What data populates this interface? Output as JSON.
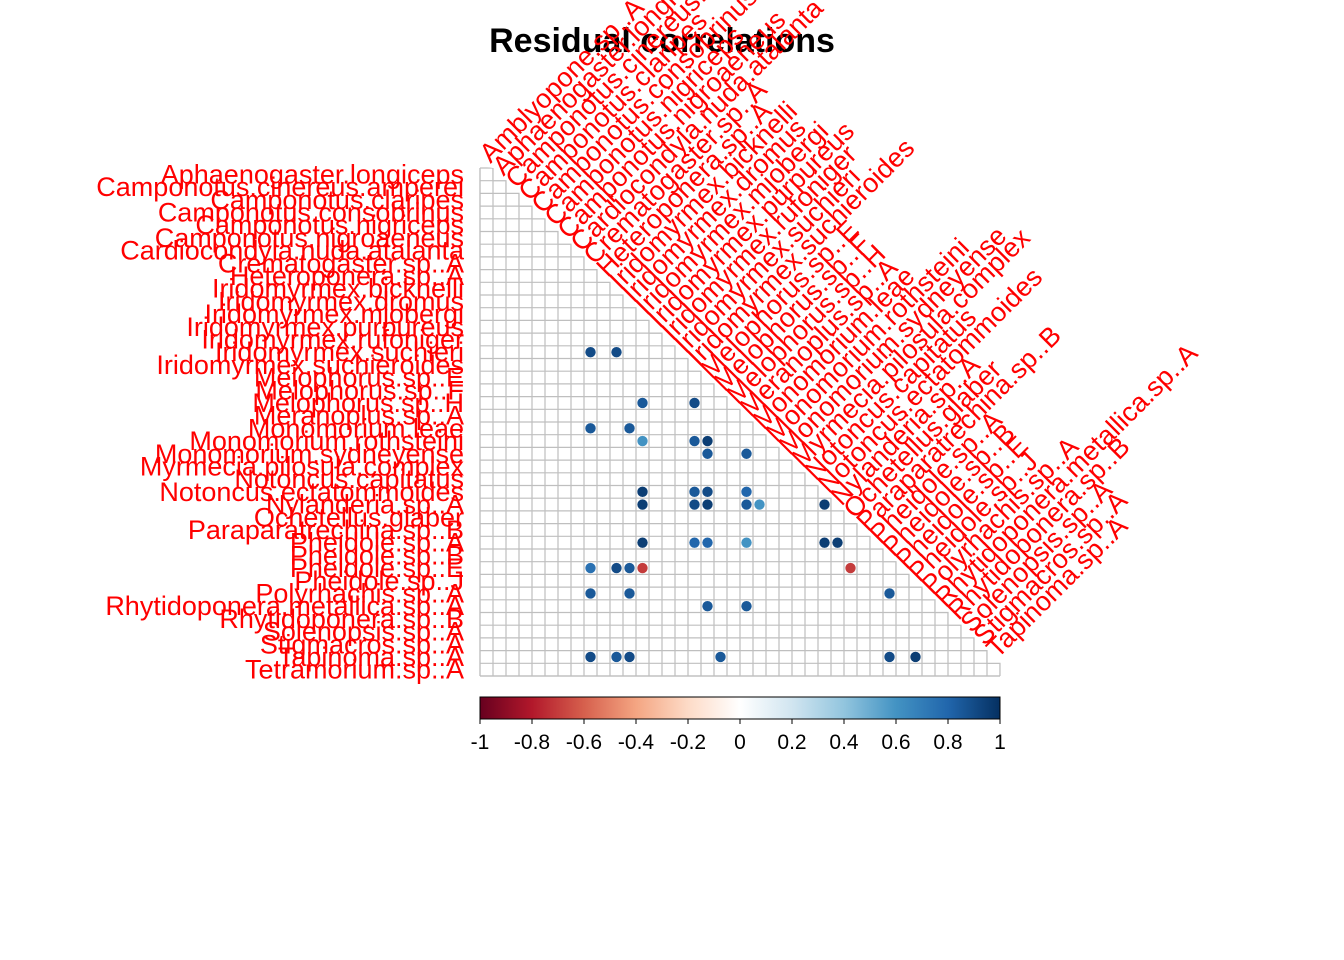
{
  "chart_data": {
    "type": "heatmap",
    "subtype": "correlation-matrix-lower-triangle",
    "title": "Residual correlations",
    "label_color": "#ff0000",
    "grid_color": "#bfbfbf",
    "colorscale": [
      "#67001f",
      "#b2182b",
      "#d6604d",
      "#f4a582",
      "#fddbc7",
      "#ffffff",
      "#d1e5f0",
      "#92c5de",
      "#4393c3",
      "#2166ac",
      "#053061"
    ],
    "colorbar": {
      "range": [
        -1,
        1
      ],
      "ticks": [
        -1,
        -0.8,
        -0.6,
        -0.4,
        -0.2,
        0,
        0.2,
        0.4,
        0.6,
        0.8,
        1
      ],
      "tick_labels": [
        "-1",
        "-0.8",
        "-0.6",
        "-0.4",
        "-0.2",
        "0",
        "0.2",
        "0.4",
        "0.6",
        "0.8",
        "1"
      ],
      "placement": "bottom"
    },
    "species": [
      "Amblyopone.sp..A",
      "Aphaenogaster.longiceps",
      "Camponotus.cinereus.amperei",
      "Camponotus.claripes",
      "Camponotus.consobrinus",
      "Camponotus.nigriceps",
      "Camponotus.nigroaeneus",
      "Cardiocondyla.nuda.atalanta",
      "Crematogaster.sp..A",
      "Heteroponera.sp..A",
      "Iridomyrmex.bicknelli",
      "Iridomyrmex.dromus",
      "Iridomyrmex.mjobergi",
      "Iridomyrmex.purpureus",
      "Iridomyrmex.rufoniger",
      "Iridomyrmex.suchieri",
      "Iridomyrmex.suchieroides",
      "Melophorus.sp..E",
      "Melophorus.sp..F",
      "Melophorus.sp..H",
      "Meranoplus.sp..A",
      "Monomorium.leae",
      "Monomorium.rothsteini",
      "Monomorium.sydneyense",
      "Myrmecia.pilosula.complex",
      "Notoncus.capitatus",
      "Notoncus.ectatommoides",
      "Nylanderia.sp..A",
      "Ochetellus.glaber",
      "Paraparatrechina.sp..B",
      "Pheidole.sp..A",
      "Pheidole.sp..B",
      "Pheidole.sp..E",
      "Pheidole.sp..J",
      "Polyrhachis.sp..A",
      "Rhytidoponera.metallica.sp..A",
      "Rhytidoponera.sp..B",
      "Solenopsis.sp..A",
      "Stigmacros.sp..A",
      "Tapinoma.sp..A",
      "Tetramorium.sp..A"
    ],
    "row_labels": [
      "Aphaenogaster.longiceps",
      "Camponotus.cinereus.amperei",
      "Camponotus.claripes",
      "Camponotus.consobrinus",
      "Camponotus.nigriceps",
      "Camponotus.nigroaeneus",
      "Cardiocondyla.nuda.atalanta",
      "Crematogaster.sp..A",
      "Heteroponera.sp..A",
      "Iridomyrmex.bicknelli",
      "Iridomyrmex.dromus",
      "Iridomyrmex.mjobergi",
      "Iridomyrmex.purpureus",
      "Iridomyrmex.rufoniger",
      "Iridomyrmex.suchieri",
      "Iridomyrmex.suchieroides",
      "Melophorus.sp..E",
      "Melophorus.sp..F",
      "Melophorus.sp..H",
      "Meranoplus.sp..A",
      "Monomorium.leae",
      "Monomorium.rothsteini",
      "Monomorium.sydneyense",
      "Myrmecia.pilosula.complex",
      "Notoncus.capitatus",
      "Notoncus.ectatommoides",
      "Nylanderia.sp..A",
      "Ochetellus.glaber",
      "Paraparatrechina.sp..B",
      "Pheidole.sp..A",
      "Pheidole.sp..B",
      "Pheidole.sp..E",
      "Pheidole.sp..J",
      "Polyrhachis.sp..A",
      "Rhytidoponera.metallica.sp..A",
      "Rhytidoponera.sp..B",
      "Solenopsis.sp..A",
      "Stigmacros.sp..A",
      "Tapinoma.sp..A",
      "Tetramorium.sp..A"
    ],
    "column_labels": [
      "Amblyopone.sp..A",
      "Aphaenogaster.longiceps",
      "Camponotus.cinereus.amperei",
      "Camponotus.claripes",
      "Camponotus.consobrinus",
      "Camponotus.nigriceps",
      "Camponotus.nigroaeneus",
      "Cardiocondyla.nuda.atalanta",
      "Crematogaster.sp..A",
      "Heteroponera.sp..A",
      "Iridomyrmex.bicknelli",
      "Iridomyrmex.dromus",
      "Iridomyrmex.mjobergi",
      "Iridomyrmex.purpureus",
      "Iridomyrmex.rufoniger",
      "Iridomyrmex.suchieri",
      "Iridomyrmex.suchieroides",
      "Melophorus.sp..E",
      "Melophorus.sp..F",
      "Melophorus.sp..H",
      "Meranoplus.sp..A",
      "Monomorium.leae",
      "Monomorium.rothsteini",
      "Monomorium.sydneyense",
      "Myrmecia.pilosula.complex",
      "Notoncus.capitatus",
      "Notoncus.ectatommoides",
      "Nylanderia.sp..A",
      "Ochetellus.glaber",
      "Paraparatrechina.sp..B",
      "Pheidole.sp..A",
      "Pheidole.sp..B",
      "Pheidole.sp..E",
      "Pheidole.sp..J",
      "Polyrhachis.sp..A",
      "Rhytidoponera.metallica.sp..A",
      "Rhytidoponera.sp..B",
      "Solenopsis.sp..A",
      "Stigmacros.sp..A",
      "Tapinoma.sp..A"
    ],
    "significant_correlations": [
      {
        "row": "Iridomyrmex.suchieri",
        "col": "Crematogaster.sp..A",
        "value": 0.9
      },
      {
        "row": "Iridomyrmex.suchieri",
        "col": "Iridomyrmex.bicknelli",
        "value": 0.9
      },
      {
        "row": "Melophorus.sp..H",
        "col": "Iridomyrmex.mjobergi",
        "value": 0.85
      },
      {
        "row": "Melophorus.sp..H",
        "col": "Iridomyrmex.suchieroides",
        "value": 0.9
      },
      {
        "row": "Monomorium.leae",
        "col": "Crematogaster.sp..A",
        "value": 0.85
      },
      {
        "row": "Monomorium.leae",
        "col": "Iridomyrmex.dromus",
        "value": 0.85
      },
      {
        "row": "Monomorium.rothsteini",
        "col": "Iridomyrmex.mjobergi",
        "value": 0.6
      },
      {
        "row": "Monomorium.rothsteini",
        "col": "Iridomyrmex.suchieroides",
        "value": 0.85
      },
      {
        "row": "Monomorium.rothsteini",
        "col": "Melophorus.sp..E",
        "value": 0.95
      },
      {
        "row": "Monomorium.sydneyense",
        "col": "Melophorus.sp..E",
        "value": 0.85
      },
      {
        "row": "Monomorium.sydneyense",
        "col": "Meranoplus.sp..A",
        "value": 0.85
      },
      {
        "row": "Notoncus.ectatommoides",
        "col": "Iridomyrmex.mjobergi",
        "value": 0.95
      },
      {
        "row": "Notoncus.ectatommoides",
        "col": "Iridomyrmex.suchieroides",
        "value": 0.85
      },
      {
        "row": "Notoncus.ectatommoides",
        "col": "Melophorus.sp..E",
        "value": 0.9
      },
      {
        "row": "Notoncus.ectatommoides",
        "col": "Meranoplus.sp..A",
        "value": 0.8
      },
      {
        "row": "Nylanderia.sp..A",
        "col": "Iridomyrmex.mjobergi",
        "value": 0.95
      },
      {
        "row": "Nylanderia.sp..A",
        "col": "Iridomyrmex.suchieroides",
        "value": 0.9
      },
      {
        "row": "Nylanderia.sp..A",
        "col": "Melophorus.sp..E",
        "value": 0.95
      },
      {
        "row": "Nylanderia.sp..A",
        "col": "Meranoplus.sp..A",
        "value": 0.85
      },
      {
        "row": "Nylanderia.sp..A",
        "col": "Monomorium.leae",
        "value": 0.6
      },
      {
        "row": "Nylanderia.sp..A",
        "col": "Notoncus.ectatommoides",
        "value": 0.95
      },
      {
        "row": "Pheidole.sp..A",
        "col": "Iridomyrmex.mjobergi",
        "value": 0.95
      },
      {
        "row": "Pheidole.sp..A",
        "col": "Iridomyrmex.suchieroides",
        "value": 0.8
      },
      {
        "row": "Pheidole.sp..A",
        "col": "Melophorus.sp..E",
        "value": 0.8
      },
      {
        "row": "Pheidole.sp..A",
        "col": "Meranoplus.sp..A",
        "value": 0.6
      },
      {
        "row": "Pheidole.sp..A",
        "col": "Notoncus.ectatommoides",
        "value": 0.95
      },
      {
        "row": "Pheidole.sp..A",
        "col": "Nylanderia.sp..A",
        "value": 0.95
      },
      {
        "row": "Pheidole.sp..E",
        "col": "Crematogaster.sp..A",
        "value": 0.75
      },
      {
        "row": "Pheidole.sp..E",
        "col": "Iridomyrmex.mjobergi",
        "value": -0.7
      },
      {
        "row": "Pheidole.sp..E",
        "col": "Iridomyrmex.bicknelli",
        "value": 0.9
      },
      {
        "row": "Pheidole.sp..E",
        "col": "Iridomyrmex.dromus",
        "value": 0.85
      },
      {
        "row": "Pheidole.sp..E",
        "col": "Ochetellus.glaber",
        "value": -0.7
      },
      {
        "row": "Polyrhachis.sp..A",
        "col": "Crematogaster.sp..A",
        "value": 0.85
      },
      {
        "row": "Polyrhachis.sp..A",
        "col": "Iridomyrmex.dromus",
        "value": 0.85
      },
      {
        "row": "Polyrhachis.sp..A",
        "col": "Pheidole.sp..B",
        "value": 0.85
      },
      {
        "row": "Rhytidoponera.metallica.sp..A",
        "col": "Melophorus.sp..E",
        "value": 0.85
      },
      {
        "row": "Rhytidoponera.metallica.sp..A",
        "col": "Meranoplus.sp..A",
        "value": 0.85
      },
      {
        "row": "Tapinoma.sp..A",
        "col": "Crematogaster.sp..A",
        "value": 0.9
      },
      {
        "row": "Tapinoma.sp..A",
        "col": "Iridomyrmex.bicknelli",
        "value": 0.85
      },
      {
        "row": "Tapinoma.sp..A",
        "col": "Iridomyrmex.dromus",
        "value": 0.9
      },
      {
        "row": "Tapinoma.sp..A",
        "col": "Melophorus.sp..F",
        "value": 0.85
      },
      {
        "row": "Tapinoma.sp..A",
        "col": "Pheidole.sp..B",
        "value": 0.9
      },
      {
        "row": "Tapinoma.sp..A",
        "col": "Pheidole.sp..J",
        "value": 0.95
      }
    ]
  }
}
